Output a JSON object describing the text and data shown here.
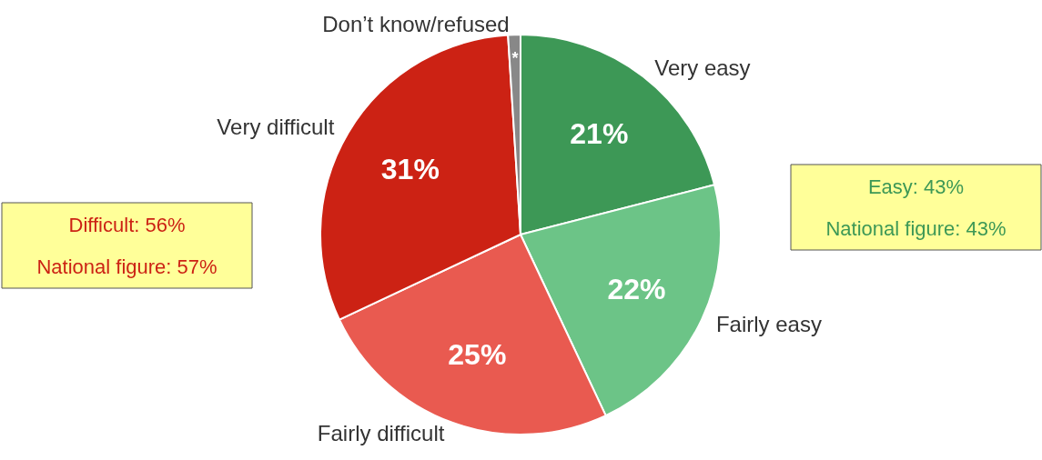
{
  "chart_data": {
    "type": "pie",
    "categories": [
      "Very easy",
      "Fairly easy",
      "Fairly difficult",
      "Very difficult",
      "Don’t know/refused"
    ],
    "values": [
      21,
      22,
      25,
      31,
      1
    ],
    "colors": [
      "#3d9856",
      "#6cc487",
      "#e95a50",
      "#cc2214",
      "#888888"
    ],
    "value_labels": [
      "21%",
      "22%",
      "25%",
      "31%",
      "*"
    ],
    "annotations": [
      "Difficult: 56%",
      "National figure: 57%",
      "Easy: 43%",
      "National figure: 43%"
    ],
    "legend": false
  }
}
